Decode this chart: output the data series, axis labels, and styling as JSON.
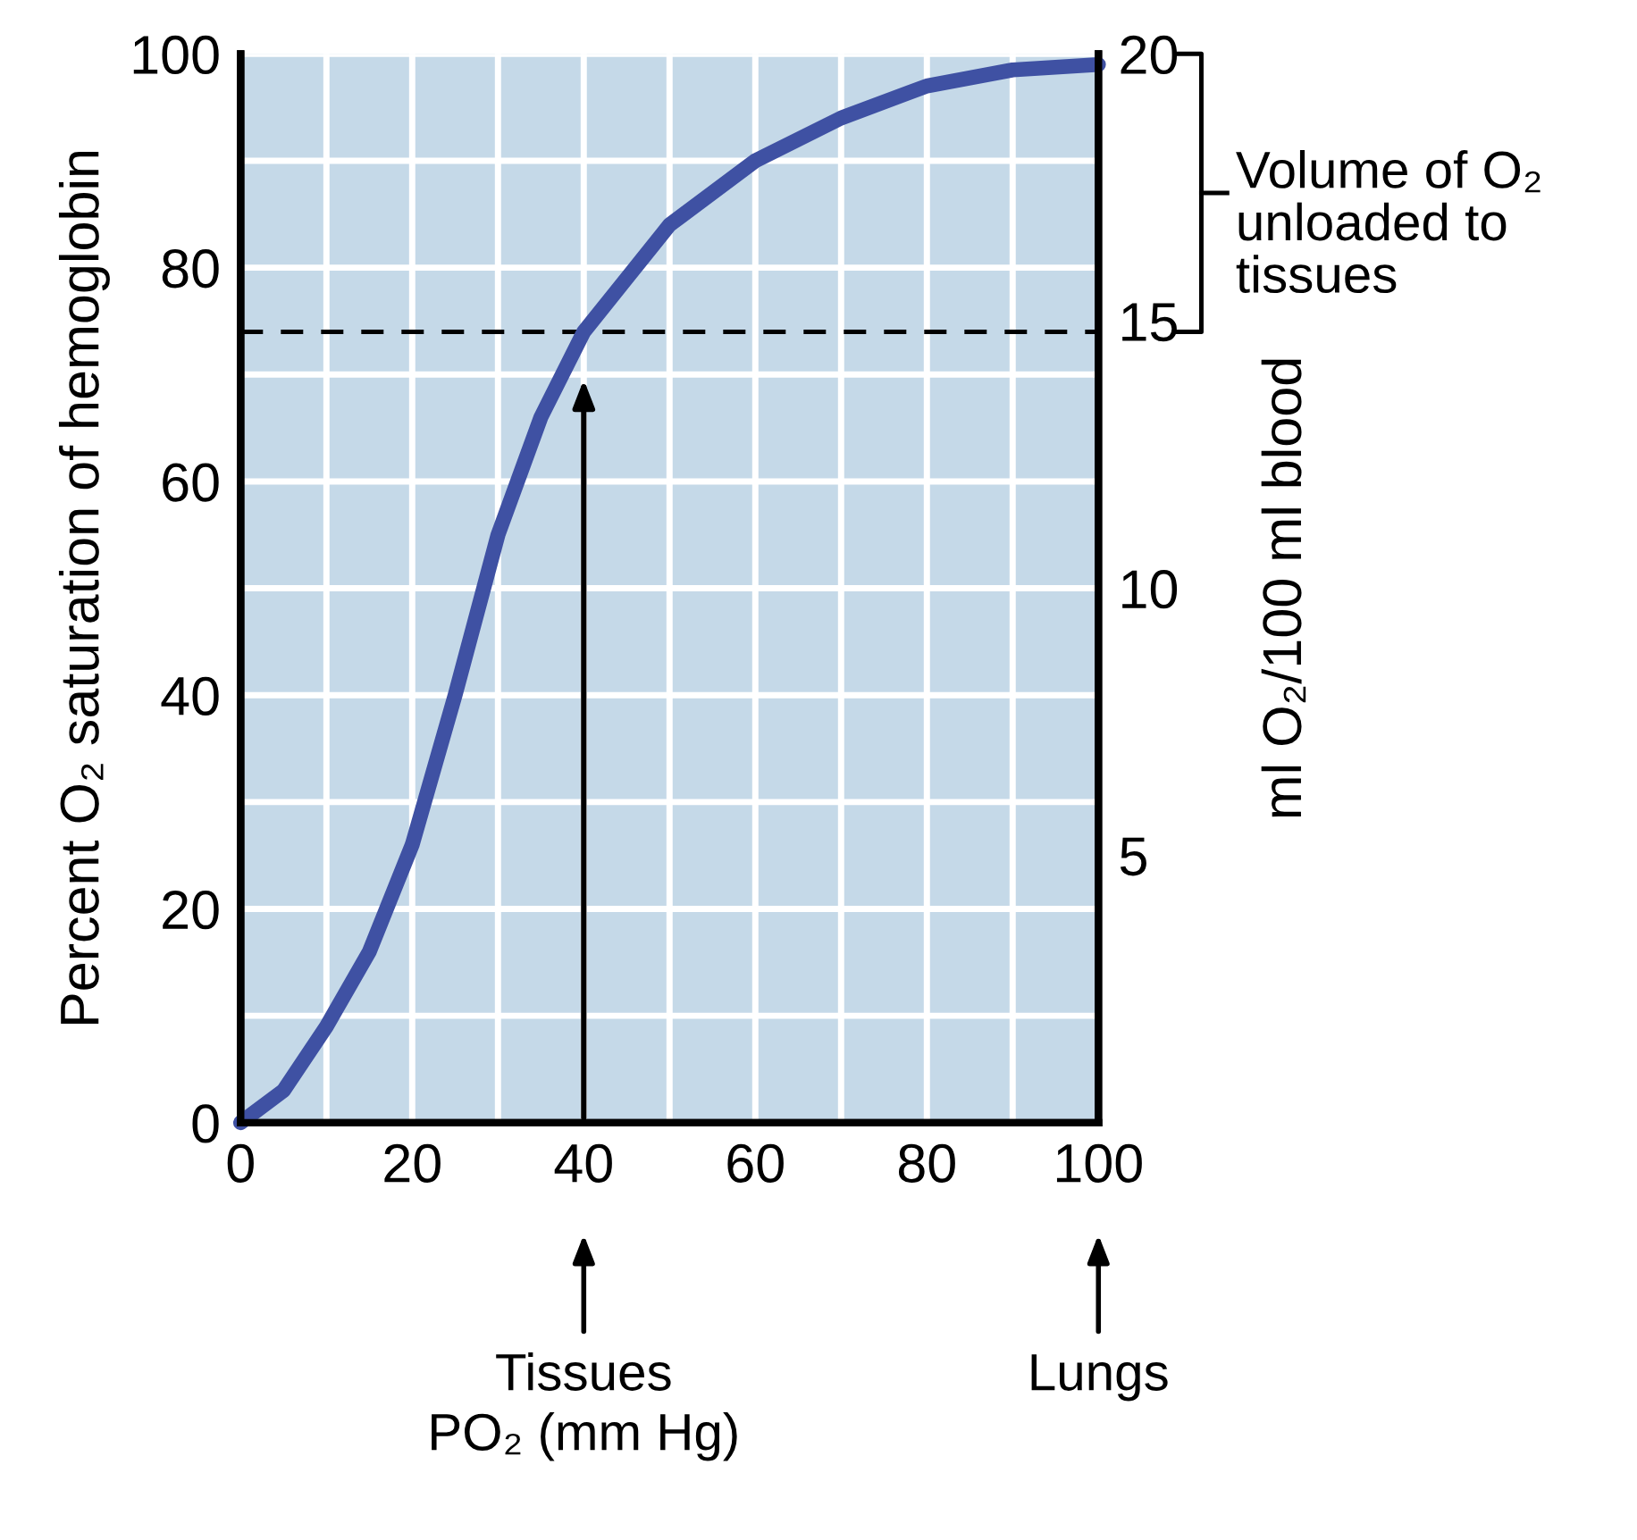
{
  "chart_data": {
    "type": "line",
    "x": [
      0,
      5,
      10,
      15,
      20,
      25,
      30,
      35,
      40,
      45,
      50,
      60,
      70,
      80,
      90,
      100
    ],
    "series": [
      {
        "color": "#3f51a3",
        "values": [
          0,
          3,
          9,
          16,
          26,
          40,
          55,
          66,
          74,
          79,
          84,
          90,
          94,
          97,
          98.5,
          99
        ]
      }
    ],
    "xlim": [
      0,
      100
    ],
    "xticks": [
      0,
      {
        "value": 10,
        "label": null
      },
      20,
      {
        "value": 30,
        "label": null
      },
      40,
      {
        "value": 50,
        "label": null
      },
      60,
      {
        "value": 70,
        "label": null
      },
      80,
      {
        "value": 90,
        "label": null
      },
      100
    ],
    "ylim": [
      0,
      100
    ],
    "yticks": [
      0,
      {
        "value": 10,
        "label": null
      },
      20,
      {
        "value": 30,
        "label": null
      },
      40,
      {
        "value": 50,
        "label": null
      },
      60,
      {
        "value": 70,
        "label": null
      },
      80,
      {
        "value": 90,
        "label": null
      },
      100
    ],
    "y2lim": [
      0,
      20
    ],
    "y2ticks": [
      5,
      10,
      15,
      20
    ],
    "ylabel": "Percent O₂ saturation of hemoglobin",
    "y2label": "ml O₂/100 ml blood",
    "grid": true,
    "marker": "none",
    "line_style": "solid",
    "ref_lines": [
      {
        "axis": "y",
        "value": 74,
        "line_style": "dashed",
        "color": "#000000"
      }
    ],
    "annotations": [
      "Volume of O₂\nunloaded to\ntissues",
      "Tissues\nPO₂ (mm Hg)",
      "Lungs"
    ]
  }
}
